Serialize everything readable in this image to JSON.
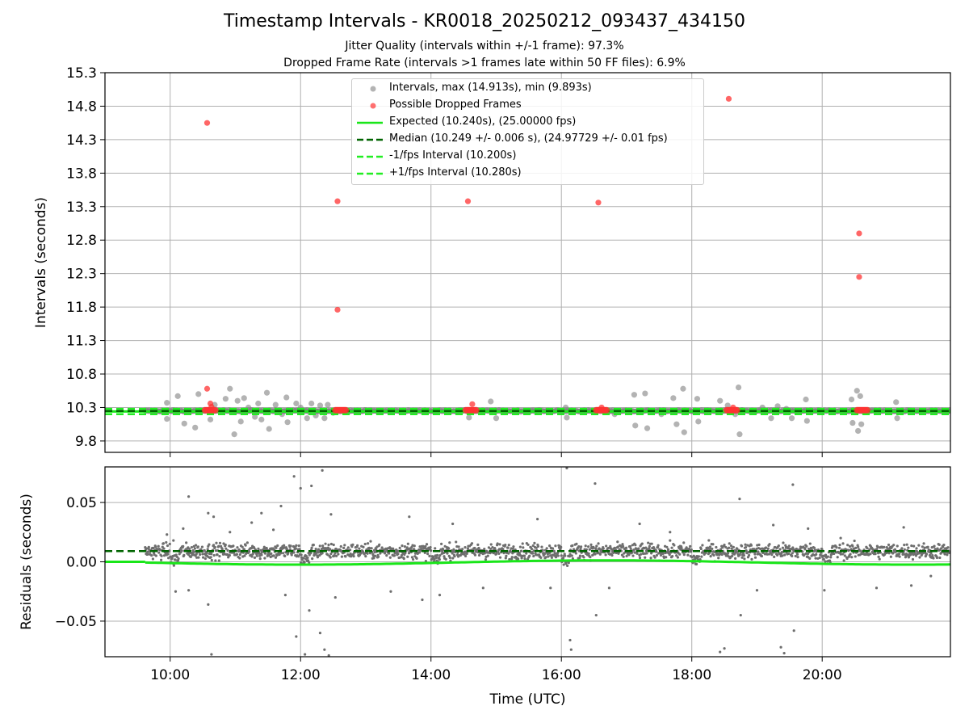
{
  "title": "Timestamp Intervals - KR0018_20250212_093437_434150",
  "subtitle_jitter": "Jitter Quality (intervals within +/-1 frame): 97.3%",
  "subtitle_dropped": "Dropped Frame Rate (intervals >1 frames late within 50 FF files): 6.9%",
  "colors": {
    "intervals": "#808080",
    "dropped": "#ff3333",
    "expected": "#19e619",
    "median": "#006400",
    "bounds": "#22ee22",
    "grid": "#b0b0b0"
  },
  "chart_data": [
    {
      "type": "scatter",
      "panel": "intervals",
      "ylabel": "Intervals (seconds)",
      "xlabel": "",
      "xlim": [
        "09:00",
        "21:58"
      ],
      "ylim": [
        9.63,
        15.3
      ],
      "yticks": [
        "9.8",
        "10.3",
        "10.8",
        "11.3",
        "11.8",
        "12.3",
        "12.8",
        "13.3",
        "13.8",
        "14.3",
        "14.8",
        "15.3"
      ],
      "xticks": [
        "10:00",
        "12:00",
        "14:00",
        "16:00",
        "18:00",
        "20:00"
      ],
      "grid": true,
      "legend_position": "top-center",
      "legend": [
        "Intervals, max (14.913s), min (9.893s)",
        "Possible Dropped Frames",
        "Expected (10.240s), (25.00000 fps)",
        "Median (10.249 +/- 0.006 s), (24.97729 +/- 0.01 fps)",
        "-1/fps Interval (10.200s)",
        "+1/fps Interval (10.280s)"
      ],
      "expected": 10.24,
      "median": 10.249,
      "lower_bound": 10.2,
      "upper_bound": 10.28,
      "intervals_max": 14.913,
      "intervals_min": 9.893,
      "outliers": [
        {
          "x": "09:57",
          "y": 10.37
        },
        {
          "x": "09:57",
          "y": 10.13
        },
        {
          "x": "10:07",
          "y": 10.47
        },
        {
          "x": "10:13",
          "y": 10.06
        },
        {
          "x": "10:23",
          "y": 10.0
        },
        {
          "x": "10:26",
          "y": 10.5
        },
        {
          "x": "10:37",
          "y": 10.12
        },
        {
          "x": "10:41",
          "y": 10.34
        },
        {
          "x": "10:51",
          "y": 10.43
        },
        {
          "x": "10:55",
          "y": 10.58
        },
        {
          "x": "10:59",
          "y": 9.9
        },
        {
          "x": "11:02",
          "y": 10.4
        },
        {
          "x": "11:05",
          "y": 10.09
        },
        {
          "x": "11:08",
          "y": 10.44
        },
        {
          "x": "11:12",
          "y": 10.3
        },
        {
          "x": "11:18",
          "y": 10.16
        },
        {
          "x": "11:21",
          "y": 10.36
        },
        {
          "x": "11:24",
          "y": 10.12
        },
        {
          "x": "11:29",
          "y": 10.52
        },
        {
          "x": "11:31",
          "y": 9.98
        },
        {
          "x": "11:37",
          "y": 10.34
        },
        {
          "x": "11:43",
          "y": 10.2
        },
        {
          "x": "11:47",
          "y": 10.45
        },
        {
          "x": "11:48",
          "y": 10.08
        },
        {
          "x": "11:56",
          "y": 10.36
        },
        {
          "x": "12:00",
          "y": 10.3
        },
        {
          "x": "12:06",
          "y": 10.14
        },
        {
          "x": "12:10",
          "y": 10.36
        },
        {
          "x": "12:14",
          "y": 10.18
        },
        {
          "x": "12:18",
          "y": 10.33
        },
        {
          "x": "12:22",
          "y": 10.14
        },
        {
          "x": "12:25",
          "y": 10.34
        },
        {
          "x": "12:30",
          "y": 10.22
        },
        {
          "x": "14:35",
          "y": 10.15
        },
        {
          "x": "14:55",
          "y": 10.39
        },
        {
          "x": "15:00",
          "y": 10.14
        },
        {
          "x": "16:04",
          "y": 10.3
        },
        {
          "x": "16:05",
          "y": 10.15
        },
        {
          "x": "16:49",
          "y": 10.2
        },
        {
          "x": "17:07",
          "y": 10.49
        },
        {
          "x": "17:08",
          "y": 10.03
        },
        {
          "x": "17:17",
          "y": 10.51
        },
        {
          "x": "17:19",
          "y": 9.99
        },
        {
          "x": "17:32",
          "y": 10.2
        },
        {
          "x": "17:43",
          "y": 10.44
        },
        {
          "x": "17:46",
          "y": 10.05
        },
        {
          "x": "17:52",
          "y": 10.58
        },
        {
          "x": "17:53",
          "y": 9.93
        },
        {
          "x": "18:05",
          "y": 10.43
        },
        {
          "x": "18:06",
          "y": 10.09
        },
        {
          "x": "18:26",
          "y": 10.4
        },
        {
          "x": "18:33",
          "y": 10.33
        },
        {
          "x": "18:40",
          "y": 10.2
        },
        {
          "x": "18:43",
          "y": 10.6
        },
        {
          "x": "18:44",
          "y": 9.9
        },
        {
          "x": "19:05",
          "y": 10.3
        },
        {
          "x": "19:13",
          "y": 10.14
        },
        {
          "x": "19:19",
          "y": 10.32
        },
        {
          "x": "19:27",
          "y": 10.28
        },
        {
          "x": "19:32",
          "y": 10.14
        },
        {
          "x": "19:45",
          "y": 10.42
        },
        {
          "x": "19:46",
          "y": 10.1
        },
        {
          "x": "20:27",
          "y": 10.42
        },
        {
          "x": "20:28",
          "y": 10.07
        },
        {
          "x": "20:32",
          "y": 10.55
        },
        {
          "x": "20:33",
          "y": 9.95
        },
        {
          "x": "20:35",
          "y": 10.47
        },
        {
          "x": "20:36",
          "y": 10.05
        },
        {
          "x": "21:08",
          "y": 10.38
        },
        {
          "x": "21:09",
          "y": 10.14
        }
      ],
      "dropped_frames": [
        {
          "x": "10:34",
          "y": 14.55
        },
        {
          "x": "10:34",
          "y": 10.58
        },
        {
          "x": "10:37",
          "y": 10.36
        },
        {
          "x": "10:38",
          "y": 10.31
        },
        {
          "x": "12:34",
          "y": 13.38
        },
        {
          "x": "12:34",
          "y": 11.76
        },
        {
          "x": "14:34",
          "y": 13.38
        },
        {
          "x": "14:38",
          "y": 10.35
        },
        {
          "x": "16:34",
          "y": 13.36
        },
        {
          "x": "16:37",
          "y": 10.3
        },
        {
          "x": "18:34",
          "y": 14.91
        },
        {
          "x": "18:38",
          "y": 10.3
        },
        {
          "x": "20:34",
          "y": 12.9
        },
        {
          "x": "20:34",
          "y": 12.25
        }
      ],
      "dropped_clusters": [
        {
          "from": "10:32",
          "to": "10:42",
          "y": 10.26
        },
        {
          "from": "12:32",
          "to": "12:42",
          "y": 10.26
        },
        {
          "from": "14:32",
          "to": "14:42",
          "y": 10.26
        },
        {
          "from": "16:32",
          "to": "16:42",
          "y": 10.26
        },
        {
          "from": "18:32",
          "to": "18:42",
          "y": 10.26
        },
        {
          "from": "20:32",
          "to": "20:42",
          "y": 10.26
        }
      ]
    },
    {
      "type": "scatter",
      "panel": "residuals",
      "ylabel": "Residuals (seconds)",
      "xlabel": "Time (UTC)",
      "xlim": [
        "09:00",
        "21:58"
      ],
      "ylim": [
        -0.08,
        0.08
      ],
      "yticks": [
        "−0.05",
        "0.00",
        "0.05"
      ],
      "xticks": [
        "10:00",
        "12:00",
        "14:00",
        "16:00",
        "18:00",
        "20:00"
      ],
      "grid": true,
      "median_offset": 0.009,
      "data_start": "09:37",
      "data_end": "21:58",
      "typical_band": [
        -0.006,
        0.024
      ],
      "outliers": [
        {
          "x": "09:57",
          "y": 0.023
        },
        {
          "x": "10:03",
          "y": 0.018
        },
        {
          "x": "10:05",
          "y": -0.025
        },
        {
          "x": "10:12",
          "y": 0.028
        },
        {
          "x": "10:17",
          "y": 0.055
        },
        {
          "x": "10:17",
          "y": -0.024
        },
        {
          "x": "10:35",
          "y": -0.036
        },
        {
          "x": "10:35",
          "y": 0.041
        },
        {
          "x": "10:38",
          "y": -0.078
        },
        {
          "x": "10:40",
          "y": 0.038
        },
        {
          "x": "10:55",
          "y": 0.025
        },
        {
          "x": "11:04",
          "y": -0.082
        },
        {
          "x": "11:15",
          "y": 0.033
        },
        {
          "x": "11:24",
          "y": 0.041
        },
        {
          "x": "11:35",
          "y": 0.027
        },
        {
          "x": "11:42",
          "y": 0.047
        },
        {
          "x": "11:46",
          "y": -0.028
        },
        {
          "x": "11:54",
          "y": 0.072
        },
        {
          "x": "11:56",
          "y": -0.063
        },
        {
          "x": "12:00",
          "y": 0.062
        },
        {
          "x": "12:04",
          "y": -0.078
        },
        {
          "x": "12:08",
          "y": -0.041
        },
        {
          "x": "12:10",
          "y": 0.064
        },
        {
          "x": "12:18",
          "y": -0.06
        },
        {
          "x": "12:20",
          "y": 0.077
        },
        {
          "x": "12:22",
          "y": -0.074
        },
        {
          "x": "12:26",
          "y": -0.079
        },
        {
          "x": "12:28",
          "y": 0.04
        },
        {
          "x": "12:32",
          "y": -0.03
        },
        {
          "x": "13:23",
          "y": -0.025
        },
        {
          "x": "13:40",
          "y": 0.038
        },
        {
          "x": "13:52",
          "y": -0.032
        },
        {
          "x": "14:08",
          "y": -0.028
        },
        {
          "x": "14:20",
          "y": 0.032
        },
        {
          "x": "14:48",
          "y": -0.022
        },
        {
          "x": "15:38",
          "y": 0.036
        },
        {
          "x": "15:50",
          "y": -0.022
        },
        {
          "x": "16:05",
          "y": 0.079
        },
        {
          "x": "16:08",
          "y": -0.066
        },
        {
          "x": "16:09",
          "y": -0.074
        },
        {
          "x": "16:31",
          "y": 0.066
        },
        {
          "x": "16:32",
          "y": -0.045
        },
        {
          "x": "16:44",
          "y": -0.022
        },
        {
          "x": "17:12",
          "y": 0.032
        },
        {
          "x": "17:40",
          "y": 0.025
        },
        {
          "x": "18:26",
          "y": -0.076
        },
        {
          "x": "18:30",
          "y": -0.073
        },
        {
          "x": "18:44",
          "y": 0.053
        },
        {
          "x": "18:45",
          "y": -0.045
        },
        {
          "x": "19:00",
          "y": -0.024
        },
        {
          "x": "19:15",
          "y": 0.031
        },
        {
          "x": "19:22",
          "y": -0.072
        },
        {
          "x": "19:25",
          "y": -0.077
        },
        {
          "x": "19:33",
          "y": 0.065
        },
        {
          "x": "19:34",
          "y": -0.058
        },
        {
          "x": "19:47",
          "y": 0.028
        },
        {
          "x": "20:02",
          "y": -0.024
        },
        {
          "x": "20:17",
          "y": 0.02
        },
        {
          "x": "20:50",
          "y": -0.022
        },
        {
          "x": "21:15",
          "y": 0.029
        },
        {
          "x": "21:22",
          "y": -0.02
        },
        {
          "x": "21:40",
          "y": -0.012
        }
      ]
    }
  ]
}
